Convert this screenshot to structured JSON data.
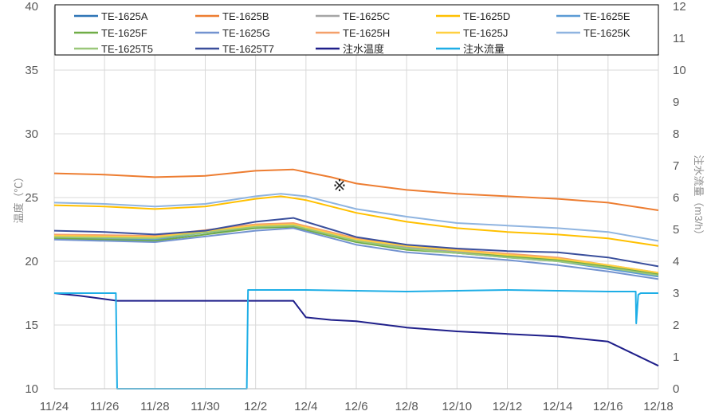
{
  "chart_data": {
    "type": "line",
    "title": "",
    "annotation": "※",
    "ylabel_left": "温度（℃）",
    "ylabel_right": "注水流量（m3/h）",
    "ylim_left": [
      10,
      40
    ],
    "ylim_right": [
      0,
      12
    ],
    "y_ticks_left": [
      "10",
      "15",
      "20",
      "25",
      "30",
      "35",
      "40"
    ],
    "y_ticks_right": [
      "0",
      "1",
      "2",
      "3",
      "4",
      "5",
      "6",
      "7",
      "8",
      "9",
      "10",
      "11",
      "12"
    ],
    "x_ticks": [
      "11/24",
      "11/26",
      "11/28",
      "11/30",
      "12/2",
      "12/4",
      "12/6",
      "12/8",
      "12/10",
      "12/12",
      "12/14",
      "12/16",
      "12/18"
    ],
    "grid": true,
    "legend_position": "top",
    "colors": {
      "TE-1625A": "#2e75b6",
      "TE-1625B": "#ed7d31",
      "TE-1625C": "#a5a5a5",
      "TE-1625D": "#ffc000",
      "TE-1625E": "#5b9bd5",
      "TE-1625F": "#70ad47",
      "TE-1625G": "#7393d0",
      "TE-1625H": "#f4a06a",
      "TE-1625J": "#ffd040",
      "TE-1625K": "#8fb4e0",
      "TE-1625T5": "#9bc77a",
      "TE-1625T7": "#3a4f9c",
      "注水温度": "#1f1f8a",
      "注水流量": "#1eaee6"
    },
    "series": [
      {
        "name": "TE-1625A",
        "axis": "left",
        "x": [
          0,
          4,
          8,
          9.5,
          12,
          14,
          18,
          20,
          22,
          24
        ],
        "y": [
          22.0,
          21.9,
          22.6,
          22.8,
          21.6,
          21.0,
          20.4,
          20.1,
          19.6,
          19.0
        ]
      },
      {
        "name": "TE-1625B",
        "axis": "left",
        "x": [
          0,
          2,
          4,
          6,
          8,
          9.5,
          11,
          12,
          14,
          16,
          18,
          20,
          22,
          24
        ],
        "y": [
          26.9,
          26.8,
          26.6,
          26.7,
          27.1,
          27.2,
          26.6,
          26.1,
          25.6,
          25.3,
          25.1,
          24.9,
          24.6,
          24.0
        ]
      },
      {
        "name": "TE-1625C",
        "axis": "left",
        "x": [
          0,
          4,
          8,
          9.5,
          12,
          14,
          18,
          20,
          22,
          24
        ],
        "y": [
          21.8,
          21.8,
          22.8,
          22.9,
          21.7,
          21.1,
          20.4,
          20.1,
          19.6,
          18.9
        ]
      },
      {
        "name": "TE-1625D",
        "axis": "left",
        "x": [
          0,
          2,
          4,
          6,
          8,
          9,
          10,
          12,
          14,
          16,
          18,
          20,
          22,
          24
        ],
        "y": [
          24.4,
          24.3,
          24.1,
          24.3,
          24.9,
          25.1,
          24.8,
          23.8,
          23.1,
          22.6,
          22.3,
          22.1,
          21.8,
          21.2
        ]
      },
      {
        "name": "TE-1625E",
        "axis": "left",
        "x": [
          0,
          4,
          8,
          9.5,
          12,
          14,
          18,
          20,
          22,
          24
        ],
        "y": [
          21.9,
          21.7,
          22.8,
          22.8,
          21.6,
          21.0,
          20.3,
          20.0,
          19.4,
          18.8
        ]
      },
      {
        "name": "TE-1625F",
        "axis": "left",
        "x": [
          0,
          4,
          8,
          9.5,
          12,
          14,
          18,
          20,
          22,
          24
        ],
        "y": [
          21.8,
          21.6,
          22.6,
          22.7,
          21.5,
          20.9,
          20.4,
          20.1,
          19.6,
          19.0
        ]
      },
      {
        "name": "TE-1625G",
        "axis": "left",
        "x": [
          0,
          4,
          8,
          9.5,
          12,
          14,
          18,
          20,
          22,
          24
        ],
        "y": [
          21.7,
          21.5,
          22.4,
          22.6,
          21.3,
          20.7,
          20.1,
          19.7,
          19.2,
          18.6
        ]
      },
      {
        "name": "TE-1625H",
        "axis": "left",
        "x": [
          0,
          4,
          8,
          9.5,
          12,
          14,
          18,
          20,
          22,
          24
        ],
        "y": [
          22.1,
          22.0,
          22.9,
          23.0,
          21.8,
          21.2,
          20.6,
          20.3,
          19.7,
          19.1
        ]
      },
      {
        "name": "TE-1625J",
        "axis": "left",
        "x": [
          0,
          4,
          8,
          9.5,
          12,
          14,
          18,
          20,
          22,
          24
        ],
        "y": [
          22.0,
          21.9,
          22.8,
          22.9,
          21.7,
          21.2,
          20.5,
          20.2,
          19.7,
          19.1
        ]
      },
      {
        "name": "TE-1625K",
        "axis": "left",
        "x": [
          0,
          2,
          4,
          6,
          8,
          9,
          10,
          12,
          14,
          16,
          18,
          20,
          22,
          24
        ],
        "y": [
          24.6,
          24.5,
          24.3,
          24.5,
          25.1,
          25.3,
          25.1,
          24.1,
          23.5,
          23.0,
          22.8,
          22.6,
          22.3,
          21.6
        ]
      },
      {
        "name": "TE-1625T5",
        "axis": "left",
        "x": [
          0,
          4,
          8,
          9.5,
          12,
          14,
          18,
          20,
          22,
          24
        ],
        "y": [
          21.9,
          21.8,
          22.7,
          22.8,
          21.6,
          21.0,
          20.3,
          20.0,
          19.5,
          18.9
        ]
      },
      {
        "name": "TE-1625T7",
        "axis": "left",
        "x": [
          0,
          2,
          4,
          6,
          8,
          9.5,
          11,
          12,
          14,
          16,
          18,
          20,
          22,
          24
        ],
        "y": [
          22.4,
          22.3,
          22.1,
          22.4,
          23.1,
          23.4,
          22.5,
          21.9,
          21.3,
          21.0,
          20.8,
          20.7,
          20.3,
          19.6
        ]
      },
      {
        "name": "注水温度",
        "axis": "left",
        "x": [
          0,
          1,
          2.5,
          8,
          9.5,
          10,
          11,
          12,
          14,
          16,
          18,
          20,
          22,
          24
        ],
        "y": [
          17.5,
          17.3,
          16.9,
          16.9,
          16.9,
          15.6,
          15.4,
          15.3,
          14.8,
          14.5,
          14.3,
          14.1,
          13.7,
          11.8
        ]
      },
      {
        "name": "注水流量",
        "axis": "right",
        "x": [
          0,
          2.45,
          2.5,
          7.65,
          7.7,
          10,
          14,
          18,
          22,
          23.1,
          23.12,
          23.2,
          23.3,
          24
        ],
        "y": [
          3.0,
          3.0,
          0.0,
          0.0,
          3.1,
          3.1,
          3.05,
          3.1,
          3.05,
          3.05,
          2.05,
          2.95,
          3.0,
          3.0
        ]
      }
    ]
  }
}
